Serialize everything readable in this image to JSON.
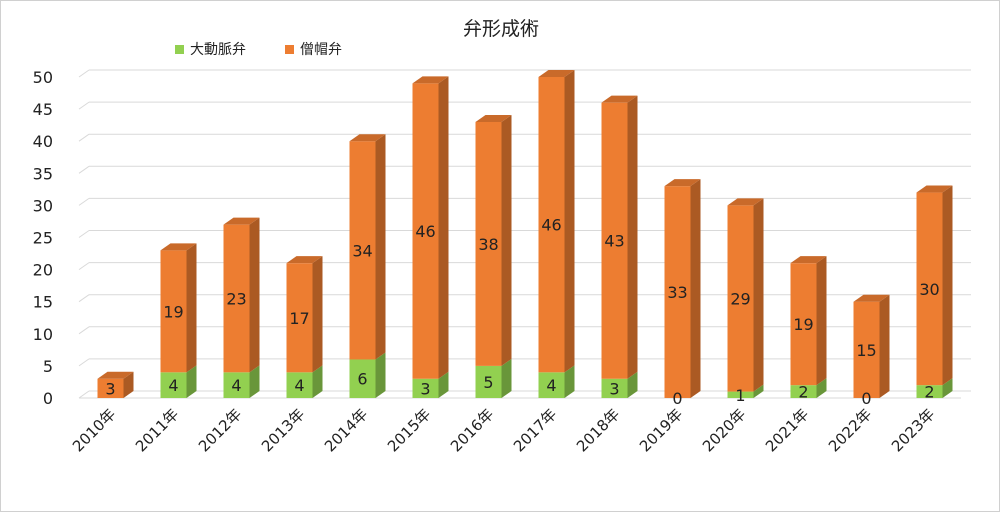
{
  "chart_data": {
    "type": "bar",
    "stacked": true,
    "title": "弁形成術",
    "categories": [
      "2010年",
      "2011年",
      "2012年",
      "2013年",
      "2014年",
      "2015年",
      "2016年",
      "2017年",
      "2018年",
      "2019年",
      "2020年",
      "2021年",
      "2022年",
      "2023年"
    ],
    "series": [
      {
        "name": "大動脈弁",
        "color": "#92d050",
        "values": [
          0,
          4,
          4,
          4,
          6,
          3,
          5,
          4,
          3,
          0,
          1,
          2,
          0,
          2
        ],
        "labels_shown": [
          false,
          true,
          true,
          true,
          true,
          true,
          true,
          true,
          true,
          true,
          true,
          true,
          true,
          true
        ]
      },
      {
        "name": "僧帽弁",
        "color": "#ed7d31",
        "values": [
          3,
          19,
          23,
          17,
          34,
          46,
          38,
          46,
          43,
          33,
          29,
          19,
          15,
          30
        ],
        "labels_shown": [
          true,
          true,
          true,
          true,
          true,
          true,
          true,
          true,
          true,
          true,
          true,
          true,
          true,
          true
        ]
      }
    ],
    "ylim": [
      0,
      50
    ],
    "yticks": [
      "0",
      "5",
      "10",
      "15",
      "20",
      "25",
      "30",
      "35",
      "40",
      "45",
      "50"
    ],
    "grid": true,
    "legend_position": "top"
  }
}
